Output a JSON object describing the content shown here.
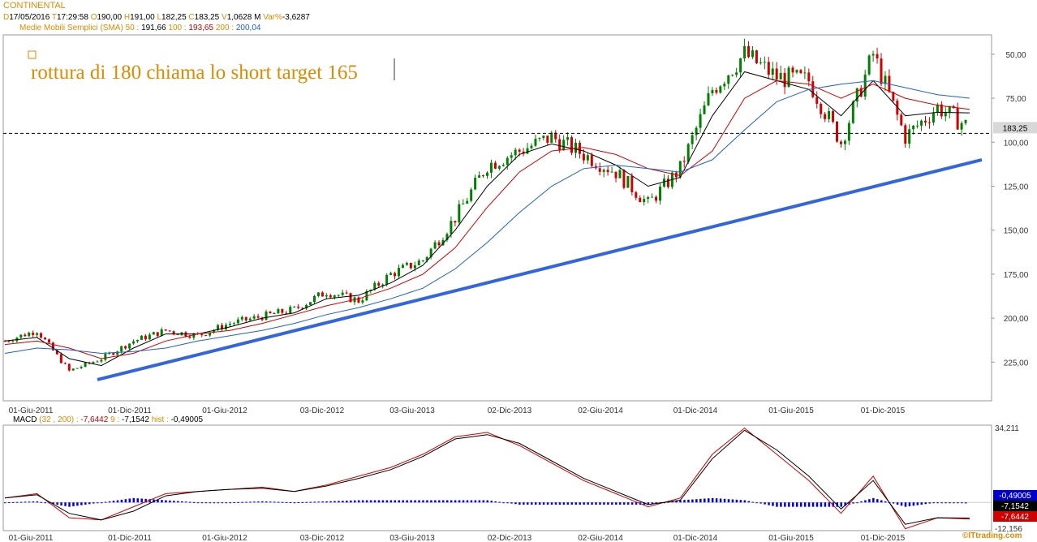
{
  "header": {
    "symbol": "CONTINENTAL",
    "quote": [
      {
        "k": "D",
        "v": "17/05/2016"
      },
      {
        "k": "T",
        "v": "17:29:58"
      },
      {
        "k": "O",
        "v": "190,00"
      },
      {
        "k": "H",
        "v": "191,00"
      },
      {
        "k": "L",
        "v": "182,25"
      },
      {
        "k": "C",
        "v": "183,25"
      },
      {
        "k": "V",
        "v": "1,0628 M"
      },
      {
        "k": "Var%",
        "v": "-3,6287"
      }
    ],
    "sma_label": "Medie Mobili Semplici (SMA)",
    "sma": [
      {
        "period": "50",
        "value": "191,66",
        "color": "#000000"
      },
      {
        "period": "100",
        "value": "193,65",
        "color": "#d00000"
      },
      {
        "period": "200",
        "value": "200,04",
        "color": "#1f5fd0"
      }
    ]
  },
  "annotation": "rottura di 180 chiama lo short target 165",
  "price_panel": {
    "y_ticks": [
      "225,00",
      "200,00",
      "175,00",
      "150,00",
      "125,00",
      "100,00",
      "75,00",
      "50,00"
    ],
    "last_price_label": "183,25",
    "x_ticks": [
      "01-Giu-2011",
      "01-Dic-2011",
      "01-Giu-2012",
      "03-Dic-2012",
      "03-Giu-2013",
      "02-Dic-2013",
      "02-Giu-2014",
      "01-Dic-2014",
      "01-Giu-2015",
      "01-Dic-2015"
    ]
  },
  "macd_panel": {
    "label": "MACD",
    "params": "(32 , 200)",
    "macd_value": "-7,6442",
    "signal_period": "9",
    "signal_value": "-7,1542",
    "hist_label": "hist",
    "hist_value": "-0,49005",
    "y_top": "34,211",
    "y_bottom": "-12,156",
    "badges": [
      {
        "text": "-0,49005",
        "bg": "#0000cc",
        "fg": "#ffffff"
      },
      {
        "text": "-7,1542",
        "bg": "#000000",
        "fg": "#ffffff"
      },
      {
        "text": "-7,6442",
        "bg": "#d00000",
        "fg": "#ffffff"
      }
    ],
    "x_ticks": [
      "01-Giu-2011",
      "01-Dic-2011",
      "01-Giu-2012",
      "03-Dic-2012",
      "03-Giu-2013",
      "02-Dic-2013",
      "02-Giu-2014",
      "01-Dic-2014",
      "01-Giu-2015",
      "01-Dic-2015"
    ]
  },
  "watermark": "©ITtrading.com",
  "colors": {
    "candle_up": "#008000",
    "candle_down": "#d00000",
    "sma50": "#000000",
    "sma100": "#d00000",
    "sma200": "#1f5fd0",
    "trendline": "#3366dd",
    "macd_hist": "#0000dd",
    "annotation": "#e08a00"
  },
  "chart_data": [
    {
      "type": "line",
      "title": "CONTINENTAL",
      "x": [
        "2011-06",
        "2011-08",
        "2011-10",
        "2011-12",
        "2012-02",
        "2012-04",
        "2012-06",
        "2012-08",
        "2012-10",
        "2012-12",
        "2013-02",
        "2013-04",
        "2013-06",
        "2013-08",
        "2013-10",
        "2013-12",
        "2014-02",
        "2014-04",
        "2014-06",
        "2014-08",
        "2014-10",
        "2014-12",
        "2015-02",
        "2015-04",
        "2015-06",
        "2015-08",
        "2015-10",
        "2015-12",
        "2016-02",
        "2016-04",
        "2016-05"
      ],
      "series": [
        {
          "name": "Close",
          "values": [
            62,
            68,
            45,
            52,
            62,
            68,
            65,
            72,
            76,
            80,
            90,
            85,
            100,
            108,
            132,
            162,
            170,
            178,
            168,
            158,
            140,
            160,
            205,
            225,
            212,
            210,
            175,
            225,
            178,
            195,
            183.25
          ]
        },
        {
          "name": "SMA 50",
          "values": [
            62,
            64,
            52,
            48,
            58,
            66,
            66,
            70,
            75,
            78,
            86,
            88,
            95,
            105,
            125,
            150,
            168,
            174,
            170,
            162,
            150,
            155,
            190,
            215,
            210,
            205,
            190,
            210,
            190,
            192,
            191.66
          ]
        },
        {
          "name": "SMA 100",
          "values": [
            60,
            62,
            58,
            52,
            55,
            62,
            66,
            68,
            72,
            77,
            82,
            86,
            92,
            100,
            115,
            138,
            158,
            170,
            172,
            168,
            160,
            156,
            170,
            200,
            210,
            208,
            200,
            208,
            200,
            196,
            193.65
          ]
        },
        {
          "name": "SMA 200",
          "values": [
            55,
            58,
            57,
            55,
            56,
            58,
            62,
            65,
            68,
            72,
            77,
            81,
            86,
            92,
            103,
            118,
            135,
            150,
            160,
            162,
            160,
            158,
            165,
            182,
            198,
            205,
            208,
            210,
            206,
            202,
            200.04
          ]
        }
      ],
      "trendline": {
        "x": [
          "2011-11",
          "2016-05"
        ],
        "values": [
          40,
          165
        ]
      },
      "reference_line": 180,
      "ylim": [
        28,
        236
      ],
      "y_ticks": [
        50,
        75,
        100,
        125,
        150,
        175,
        200,
        225
      ],
      "grid": false
    },
    {
      "type": "line",
      "title": "MACD (32 , 200)",
      "x": [
        "2011-06",
        "2011-08",
        "2011-10",
        "2011-12",
        "2012-02",
        "2012-04",
        "2012-06",
        "2012-08",
        "2012-10",
        "2012-12",
        "2013-02",
        "2013-04",
        "2013-06",
        "2013-08",
        "2013-10",
        "2013-12",
        "2014-02",
        "2014-04",
        "2014-06",
        "2014-08",
        "2014-10",
        "2014-12",
        "2015-02",
        "2015-04",
        "2015-06",
        "2015-08",
        "2015-10",
        "2015-12",
        "2016-02",
        "2016-04",
        "2016-05"
      ],
      "series": [
        {
          "name": "MACD",
          "values": [
            2,
            4,
            -7,
            -8,
            -2,
            4,
            5,
            6,
            7,
            5,
            8,
            12,
            16,
            22,
            30,
            32,
            26,
            18,
            10,
            4,
            -2,
            2,
            22,
            34,
            22,
            10,
            -5,
            12,
            -12,
            -7,
            -7.6442
          ]
        },
        {
          "name": "Signal",
          "values": [
            2,
            3.5,
            -5,
            -8,
            -4,
            3,
            5,
            6,
            6.5,
            5,
            7.5,
            11,
            15,
            21,
            29,
            31,
            27,
            19,
            11,
            5,
            -1,
            1,
            20,
            33,
            24,
            12,
            -3,
            10,
            -10,
            -7,
            -7.1542
          ]
        },
        {
          "name": "hist",
          "values": [
            0,
            0.5,
            -2,
            0,
            2,
            1,
            0,
            0,
            0.5,
            0,
            0.5,
            1,
            1,
            1,
            1,
            1,
            -1,
            -1,
            -1,
            -1,
            -1,
            1,
            2,
            1,
            -2,
            -2,
            -2,
            2,
            -2,
            0,
            -0.49005
          ]
        }
      ],
      "ylim": [
        -12.156,
        34.211
      ]
    }
  ]
}
